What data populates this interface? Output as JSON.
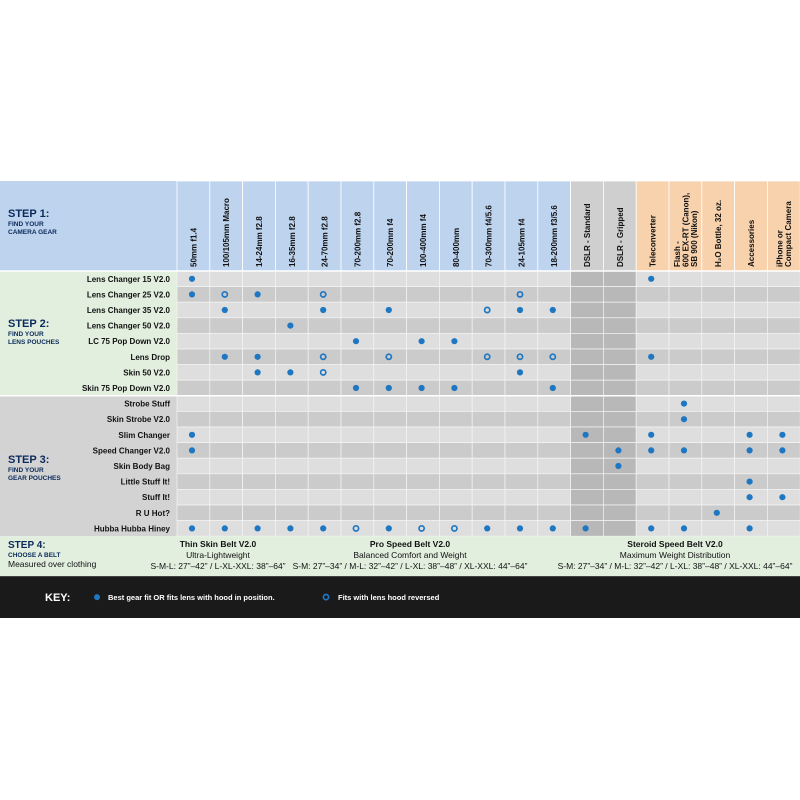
{
  "colors": {
    "blue_header": "#bdd3ee",
    "orange_header": "#f8d2ad",
    "gray_header": "#cfcfcf",
    "green_panel": "#e2efdf",
    "gray_panel": "#d3d3d3",
    "grid_a": "#dedede",
    "grid_b": "#cbcbcb",
    "grid_alt": "#b8b8b8",
    "dot": "#1f77c2",
    "key_bar": "#1a1a1a"
  },
  "step1": {
    "title": "STEP 1:",
    "line1": "FIND YOUR",
    "line2": "CAMERA GEAR"
  },
  "step2": {
    "title": "STEP 2:",
    "line1": "FIND YOUR",
    "line2": "LENS POUCHES"
  },
  "step3": {
    "title": "STEP 3:",
    "line1": "FIND YOUR",
    "line2": "GEAR POUCHES"
  },
  "step4": {
    "title": "STEP 4:",
    "line1": "CHOOSE A BELT",
    "line2": "Measured over clothing"
  },
  "columns": [
    {
      "label": [
        "50mm f1.4"
      ],
      "group": "blue"
    },
    {
      "label": [
        "100/105mm Macro"
      ],
      "group": "blue"
    },
    {
      "label": [
        "14-24mm f2.8"
      ],
      "group": "blue"
    },
    {
      "label": [
        "16-35mm f2.8"
      ],
      "group": "blue"
    },
    {
      "label": [
        "24-70mm f2.8"
      ],
      "group": "blue"
    },
    {
      "label": [
        "70-200mm f2.8"
      ],
      "group": "blue"
    },
    {
      "label": [
        "70-200mm f4"
      ],
      "group": "blue"
    },
    {
      "label": [
        "100-400mm f4"
      ],
      "group": "blue"
    },
    {
      "label": [
        "80-400mm"
      ],
      "group": "blue"
    },
    {
      "label": [
        "70-300mm f4/5.6"
      ],
      "group": "blue"
    },
    {
      "label": [
        "24-105mm f4"
      ],
      "group": "blue"
    },
    {
      "label": [
        "18-200mm f3/5.6"
      ],
      "group": "blue"
    },
    {
      "label": [
        "DSLR - Standard"
      ],
      "group": "gray"
    },
    {
      "label": [
        "DSLR - Gripped"
      ],
      "group": "gray"
    },
    {
      "label": [
        "Teleconverter"
      ],
      "group": "orange"
    },
    {
      "label": [
        "Flash -",
        "600 EX-RT (Canon),",
        "SB 900 (Nikon)"
      ],
      "group": "orange"
    },
    {
      "label": [
        "H₂O Bottle, 32 oz."
      ],
      "group": "orange"
    },
    {
      "label": [
        "Accessories"
      ],
      "group": "orange"
    },
    {
      "label": [
        "iPhone or",
        "Compact Camera"
      ],
      "group": "orange"
    }
  ],
  "lens_pouches": [
    {
      "name": "Lens Changer 15 V2.0",
      "marks": [
        1,
        0,
        0,
        0,
        0,
        0,
        0,
        0,
        0,
        0,
        0,
        0,
        0,
        0,
        1,
        0,
        0,
        0,
        0
      ]
    },
    {
      "name": "Lens Changer 25 V2.0",
      "marks": [
        1,
        2,
        1,
        0,
        2,
        0,
        0,
        0,
        0,
        0,
        2,
        0,
        0,
        0,
        0,
        0,
        0,
        0,
        0
      ]
    },
    {
      "name": "Lens Changer 35 V2.0",
      "marks": [
        0,
        1,
        0,
        0,
        1,
        0,
        1,
        0,
        0,
        2,
        1,
        1,
        0,
        0,
        0,
        0,
        0,
        0,
        0
      ]
    },
    {
      "name": "Lens Changer 50 V2.0",
      "marks": [
        0,
        0,
        0,
        1,
        0,
        0,
        0,
        0,
        0,
        0,
        0,
        0,
        0,
        0,
        0,
        0,
        0,
        0,
        0
      ]
    },
    {
      "name": "LC 75 Pop Down V2.0",
      "marks": [
        0,
        0,
        0,
        0,
        0,
        1,
        0,
        1,
        1,
        0,
        0,
        0,
        0,
        0,
        0,
        0,
        0,
        0,
        0
      ]
    },
    {
      "name": "Lens Drop",
      "marks": [
        0,
        1,
        1,
        0,
        2,
        0,
        2,
        0,
        0,
        2,
        2,
        2,
        0,
        0,
        1,
        0,
        0,
        0,
        0
      ]
    },
    {
      "name": "Skin 50 V2.0",
      "marks": [
        0,
        0,
        1,
        1,
        2,
        0,
        0,
        0,
        0,
        0,
        1,
        0,
        0,
        0,
        0,
        0,
        0,
        0,
        0
      ]
    },
    {
      "name": "Skin 75 Pop Down V2.0",
      "marks": [
        0,
        0,
        0,
        0,
        0,
        1,
        1,
        1,
        1,
        0,
        0,
        1,
        0,
        0,
        0,
        0,
        0,
        0,
        0
      ]
    }
  ],
  "gear_pouches": [
    {
      "name": "Strobe Stuff",
      "marks": [
        0,
        0,
        0,
        0,
        0,
        0,
        0,
        0,
        0,
        0,
        0,
        0,
        0,
        0,
        0,
        1,
        0,
        0,
        0
      ]
    },
    {
      "name": "Skin Strobe V2.0",
      "marks": [
        0,
        0,
        0,
        0,
        0,
        0,
        0,
        0,
        0,
        0,
        0,
        0,
        0,
        0,
        0,
        1,
        0,
        0,
        0
      ]
    },
    {
      "name": "Slim Changer",
      "marks": [
        1,
        0,
        0,
        0,
        0,
        0,
        0,
        0,
        0,
        0,
        0,
        0,
        1,
        0,
        1,
        0,
        0,
        1,
        1
      ]
    },
    {
      "name": "Speed Changer V2.0",
      "marks": [
        1,
        0,
        0,
        0,
        0,
        0,
        0,
        0,
        0,
        0,
        0,
        0,
        0,
        1,
        1,
        1,
        0,
        1,
        1
      ]
    },
    {
      "name": "Skin Body Bag",
      "marks": [
        0,
        0,
        0,
        0,
        0,
        0,
        0,
        0,
        0,
        0,
        0,
        0,
        0,
        1,
        0,
        0,
        0,
        0,
        0
      ]
    },
    {
      "name": "Little Stuff It!",
      "marks": [
        0,
        0,
        0,
        0,
        0,
        0,
        0,
        0,
        0,
        0,
        0,
        0,
        0,
        0,
        0,
        0,
        0,
        1,
        0
      ]
    },
    {
      "name": "Stuff It!",
      "marks": [
        0,
        0,
        0,
        0,
        0,
        0,
        0,
        0,
        0,
        0,
        0,
        0,
        0,
        0,
        0,
        0,
        0,
        1,
        1
      ]
    },
    {
      "name": "R U Hot?",
      "marks": [
        0,
        0,
        0,
        0,
        0,
        0,
        0,
        0,
        0,
        0,
        0,
        0,
        0,
        0,
        0,
        0,
        1,
        0,
        0
      ]
    },
    {
      "name": "Hubba Hubba Hiney",
      "marks": [
        1,
        1,
        1,
        1,
        1,
        2,
        1,
        2,
        2,
        1,
        1,
        1,
        1,
        0,
        1,
        1,
        0,
        1,
        0
      ]
    }
  ],
  "belts": [
    {
      "name": "Thin Skin Belt V2.0",
      "desc": "Ultra-Lightweight",
      "sizes": "S-M-L: 27”–42” / L-XL-XXL: 38”–64”"
    },
    {
      "name": "Pro Speed Belt V2.0",
      "desc": "Balanced Comfort and Weight",
      "sizes": "S-M: 27”–34” / M-L: 32”–42” / L-XL: 38”–48” / XL-XXL: 44”–64”"
    },
    {
      "name": "Steroid Speed Belt V2.0",
      "desc": "Maximum Weight Distribution",
      "sizes": "S-M: 27”–34” / M-L: 32”–42” / L-XL: 38”–48” / XL-XXL: 44”–64”"
    }
  ],
  "key": {
    "label": "KEY:",
    "filled": "Best gear fit OR fits lens with hood in position.",
    "ring": "Fits with lens hood reversed"
  }
}
